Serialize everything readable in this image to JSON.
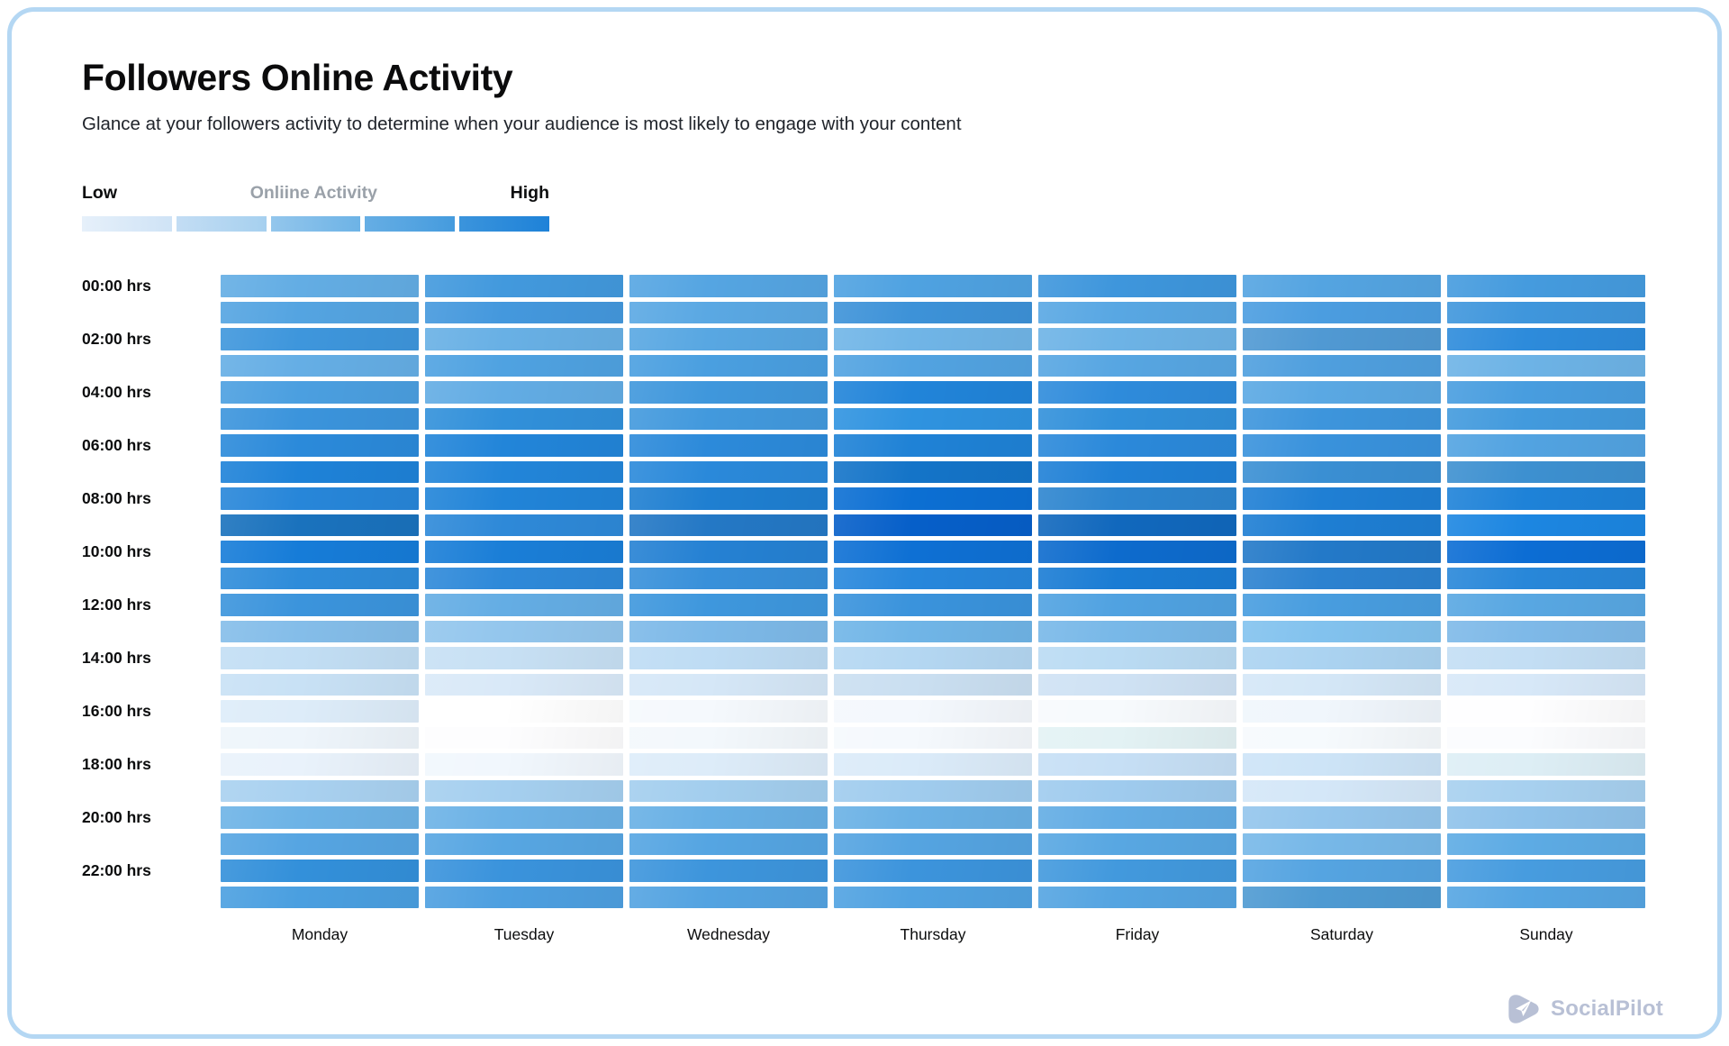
{
  "page": {
    "title": "Followers Online Activity",
    "subtitle": "Glance at your followers activity to determine when your audience is most likely to engage with your content"
  },
  "legend": {
    "low_label": "Low",
    "mid_label": "Onliine Activity",
    "high_label": "High",
    "swatches": [
      {
        "from": "#e6f0fa",
        "to": "#cfe3f6"
      },
      {
        "from": "#c3ddf4",
        "to": "#a6d0ef"
      },
      {
        "from": "#93c6ec",
        "to": "#6db3e6"
      },
      {
        "from": "#66aee4",
        "to": "#459bde"
      },
      {
        "from": "#3b94dc",
        "to": "#1e82d8"
      }
    ]
  },
  "branding": {
    "name": "SocialPilot",
    "color": "#b8c0d5"
  },
  "chart_data": {
    "type": "heatmap",
    "title": "Followers Online Activity",
    "x_categories": [
      "Monday",
      "Tuesday",
      "Wednesday",
      "Thursday",
      "Friday",
      "Saturday",
      "Sunday"
    ],
    "y_tick_labels": [
      "00:00 hrs",
      "02:00 hrs",
      "04:00 hrs",
      "06:00 hrs",
      "08:00 hrs",
      "10:00 hrs",
      "12:00 hrs",
      "14:00 hrs",
      "16:00 hrs",
      "18:00 hrs",
      "20:00 hrs",
      "22:00 hrs"
    ],
    "y_rows_per_tick": 2,
    "rows": 24,
    "scale": {
      "min_label": "Low",
      "max_label": "High",
      "steps": 5,
      "range": [
        0,
        10
      ]
    },
    "levels": [
      [
        5,
        6,
        5,
        6,
        7,
        5,
        6
      ],
      [
        5,
        6,
        5,
        7,
        5,
        6,
        7
      ],
      [
        7,
        5,
        5,
        5,
        5,
        6,
        8
      ],
      [
        5,
        6,
        6,
        6,
        5,
        6,
        5
      ],
      [
        6,
        5,
        7,
        9,
        8,
        5,
        6
      ],
      [
        7,
        7,
        6,
        7,
        7,
        7,
        6
      ],
      [
        8,
        9,
        8,
        9,
        8,
        7,
        6
      ],
      [
        9,
        9,
        8,
        9,
        9,
        7,
        7
      ],
      [
        8,
        9,
        9,
        10,
        8,
        9,
        9
      ],
      [
        9,
        8,
        9,
        10,
        10,
        9,
        9
      ],
      [
        9,
        9,
        9,
        10,
        10,
        9,
        10
      ],
      [
        8,
        8,
        7,
        8,
        9,
        8,
        8
      ],
      [
        7,
        5,
        7,
        7,
        6,
        6,
        5
      ],
      [
        4,
        4,
        4,
        5,
        4,
        4,
        4
      ],
      [
        2,
        2,
        2,
        3,
        2,
        3,
        2
      ],
      [
        2,
        1,
        1,
        2,
        2,
        1,
        1
      ],
      [
        1,
        0,
        0,
        0,
        0,
        0,
        0
      ],
      [
        0,
        0,
        0,
        0,
        1,
        0,
        0
      ],
      [
        1,
        0,
        1,
        1,
        2,
        2,
        1
      ],
      [
        3,
        3,
        3,
        3,
        3,
        1,
        3
      ],
      [
        5,
        5,
        5,
        5,
        5,
        4,
        4
      ],
      [
        5,
        5,
        5,
        5,
        5,
        4,
        5
      ],
      [
        7,
        7,
        7,
        7,
        6,
        5,
        6
      ],
      [
        6,
        6,
        6,
        6,
        5,
        6,
        6
      ]
    ],
    "colors": [
      [
        "#63ade4",
        "#4299dd",
        "#55a5e2",
        "#4fa2e1",
        "#3e96dc",
        "#54a4e1",
        "#459bde"
      ],
      [
        "#54a4e1",
        "#4498dd",
        "#5aa8e3",
        "#3d92d8",
        "#58a7e3",
        "#4b9de0",
        "#3f96dc"
      ],
      [
        "#3e96dc",
        "#68b0e5",
        "#58a7e2",
        "#70b5e7",
        "#6db3e6",
        "#5099d3",
        "#2d8bdb"
      ],
      [
        "#65aee5",
        "#4fa2e1",
        "#4a9fe0",
        "#52a3e1",
        "#57a6e2",
        "#4f9fde",
        "#6db3e6"
      ],
      [
        "#4b9fe0",
        "#62ace4",
        "#3f97dc",
        "#2184d9",
        "#2e8bdb",
        "#5aa8e3",
        "#489ddf"
      ],
      [
        "#3b94dc",
        "#3190da",
        "#4299dd",
        "#2f93e0",
        "#3190da",
        "#3d95dc",
        "#429add"
      ],
      [
        "#2b8ada",
        "#2285d9",
        "#2c8ada",
        "#1f82d6",
        "#2b89da",
        "#3992dc",
        "#52a3e1"
      ],
      [
        "#1e82d8",
        "#2285d9",
        "#2a89da",
        "#1474c8",
        "#1f80d6",
        "#3a8fd3",
        "#3d90d0"
      ],
      [
        "#2786d9",
        "#2184d8",
        "#1f7fd1",
        "#0c6fd3",
        "#2d85cf",
        "#1f7fd4",
        "#1e82d8"
      ],
      [
        "#1a72bd",
        "#2e89d8",
        "#2478c5",
        "#065fc9",
        "#1168bd",
        "#1e7ed3",
        "#1c86e1"
      ],
      [
        "#167cd8",
        "#1a7ed7",
        "#2581d3",
        "#0e70d4",
        "#0d6bcd",
        "#2379c8",
        "#0c6dd4"
      ],
      [
        "#2e8cda",
        "#2e89d9",
        "#3890da",
        "#2787dc",
        "#1a7cd4",
        "#2c82d0",
        "#2887d9"
      ],
      [
        "#3b94dc",
        "#64ade4",
        "#3e97dd",
        "#3a93dc",
        "#50a2e1",
        "#489ddf",
        "#58a7e2"
      ],
      [
        "#84bde9",
        "#93c6ed",
        "#7db9e8",
        "#70b5e7",
        "#78b8e8",
        "#82c2ee",
        "#7eb9e8"
      ],
      [
        "#c2def4",
        "#c7e0f4",
        "#bedcf4",
        "#b4d7f2",
        "#badbf3",
        "#abd3f1",
        "#c3def4"
      ],
      [
        "#c8e1f5",
        "#d9e9f8",
        "#d5e7f7",
        "#cadff1",
        "#cfe2f4",
        "#d4e7f7",
        "#d7e8f8"
      ],
      [
        "#ddecf9",
        "#ffffff",
        "#f5f9fd",
        "#f4f8fd",
        "#f7fafd",
        "#f0f6fc",
        "#fefeff"
      ],
      [
        "#eef5fb",
        "#fdfdfe",
        "#f3f8fc",
        "#f5f9fd",
        "#e3f2f4",
        "#f6fafd",
        "#fbfcfe"
      ],
      [
        "#e9f2fb",
        "#f1f7fd",
        "#ddecf9",
        "#dbebf9",
        "#c6dff5",
        "#cde4f7",
        "#ddeef5"
      ],
      [
        "#a9d1f0",
        "#a5cfef",
        "#a3ceee",
        "#a0ccee",
        "#9fcbee",
        "#d4e7f8",
        "#a7d0ef"
      ],
      [
        "#6db3e6",
        "#6cb2e6",
        "#68b0e5",
        "#6ab1e5",
        "#62ace4",
        "#93c5ec",
        "#8fc2ea"
      ],
      [
        "#56a5e2",
        "#57a6e2",
        "#55a5e2",
        "#55a4e1",
        "#58a7e2",
        "#77b8e8",
        "#5dabe4"
      ],
      [
        "#3390da",
        "#3a93dc",
        "#3d95dc",
        "#3c94dc",
        "#4299dd",
        "#55a4e1",
        "#479cdf"
      ],
      [
        "#4a9fe0",
        "#4d9fe0",
        "#53a3e1",
        "#50a2e1",
        "#54a4e1",
        "#4e9ad2",
        "#55a5e2"
      ]
    ],
    "grid": "white gaps between cells",
    "legend_position": "top-left"
  }
}
